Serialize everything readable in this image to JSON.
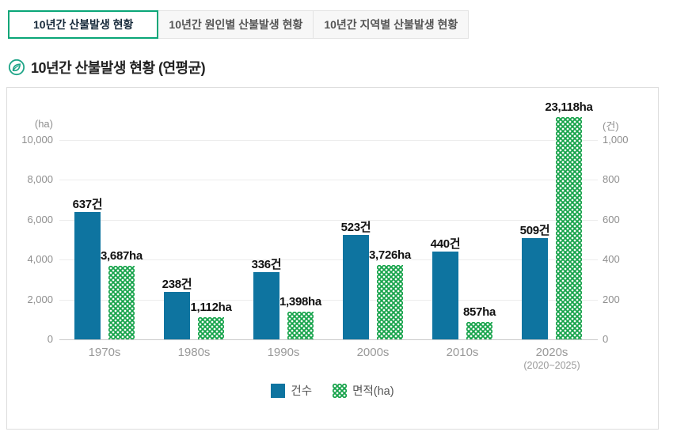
{
  "tabs": [
    {
      "label": "10년간 산불발생 현황",
      "active": true
    },
    {
      "label": "10년간 원인별 산불발생 현황",
      "active": false
    },
    {
      "label": "10년간 지역별 산불발생 현황",
      "active": false
    }
  ],
  "page_title": "10년간 산불발생 현황 (연평균)",
  "title_icon": "leaf-in-circle-icon",
  "colors": {
    "count_bar": "#0e74a0",
    "area_bar_green": "#17a34b",
    "active_tab_border": "#0aa678",
    "grid": "#ececec",
    "axis_text": "#8f8f8f"
  },
  "chart_data": {
    "type": "bar",
    "title": "10년간 산불발생 현황 (연평균)",
    "categories": [
      "1970s",
      "1980s",
      "1990s",
      "2000s",
      "2010s",
      "2020s"
    ],
    "category_sublabels": [
      "",
      "",
      "",
      "",
      "",
      "(2020~2025)"
    ],
    "series": [
      {
        "name": "건수",
        "axis": "right",
        "style": "solid",
        "color": "#0e74a0",
        "values": [
          637,
          238,
          336,
          523,
          440,
          509
        ],
        "labels": [
          "637건",
          "238건",
          "336건",
          "523건",
          "440건",
          "509건"
        ]
      },
      {
        "name": "면적(ha)",
        "axis": "left",
        "style": "dotted",
        "color": "#17a34b",
        "values": [
          3687,
          1112,
          1398,
          3726,
          857,
          23118
        ],
        "labels": [
          "3,687ha",
          "1,112ha",
          "1,398ha",
          "3,726ha",
          "857ha",
          "23,118ha"
        ]
      }
    ],
    "left_axis": {
      "title": "(ha)",
      "min": 0,
      "max": 10000,
      "ticks": [
        "10,000",
        "8,000",
        "6,000",
        "4,000",
        "2,000",
        "0"
      ]
    },
    "right_axis": {
      "title": "(건)",
      "min": 0,
      "max": 1000,
      "ticks": [
        "1,000",
        "800",
        "600",
        "400",
        "200",
        "0"
      ]
    },
    "grid": true,
    "legend_position": "bottom",
    "legend": [
      {
        "label": "건수"
      },
      {
        "label": "면적(ha)"
      }
    ]
  }
}
